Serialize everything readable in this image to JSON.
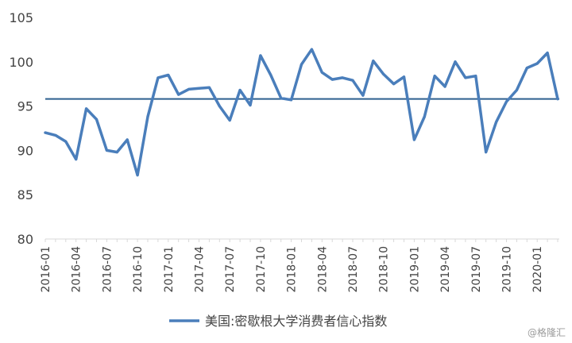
{
  "chart_data": {
    "type": "line",
    "title": "",
    "xlabel": "",
    "ylabel": "",
    "ylim": [
      80,
      105
    ],
    "yticks": [
      80,
      85,
      90,
      95,
      100,
      105
    ],
    "grid": false,
    "legend_position": "bottom",
    "x": [
      "2016-01",
      "2016-02",
      "2016-03",
      "2016-04",
      "2016-05",
      "2016-06",
      "2016-07",
      "2016-08",
      "2016-09",
      "2016-10",
      "2016-11",
      "2016-12",
      "2017-01",
      "2017-02",
      "2017-03",
      "2017-04",
      "2017-05",
      "2017-06",
      "2017-07",
      "2017-08",
      "2017-09",
      "2017-10",
      "2017-11",
      "2017-12",
      "2018-01",
      "2018-02",
      "2018-03",
      "2018-04",
      "2018-05",
      "2018-06",
      "2018-07",
      "2018-08",
      "2018-09",
      "2018-10",
      "2018-11",
      "2018-12",
      "2019-01",
      "2019-02",
      "2019-03",
      "2019-04",
      "2019-05",
      "2019-06",
      "2019-07",
      "2019-08",
      "2019-09",
      "2019-10",
      "2019-11",
      "2019-12",
      "2020-01",
      "2020-02",
      "2020-03"
    ],
    "xticklabels": [
      "2016-01",
      "2016-04",
      "2016-07",
      "2016-10",
      "2017-01",
      "2017-04",
      "2017-07",
      "2017-10",
      "2018-01",
      "2018-04",
      "2018-07",
      "2018-10",
      "2019-01",
      "2019-04",
      "2019-07",
      "2019-10",
      "2020-01"
    ],
    "series": [
      {
        "name": "美国:密歇根大学消费者信心指数",
        "color": "#4a7ebb",
        "values": [
          92.0,
          91.7,
          91.0,
          89.0,
          94.7,
          93.5,
          90.0,
          89.8,
          91.2,
          87.2,
          93.8,
          98.2,
          98.5,
          96.3,
          96.9,
          97.0,
          97.1,
          95.0,
          93.4,
          96.8,
          95.1,
          100.7,
          98.5,
          95.9,
          95.7,
          99.7,
          101.4,
          98.8,
          98.0,
          98.2,
          97.9,
          96.2,
          100.1,
          98.6,
          97.5,
          98.3,
          91.2,
          93.8,
          98.4,
          97.2,
          100.0,
          98.2,
          98.4,
          89.8,
          93.2,
          95.5,
          96.8,
          99.3,
          99.8,
          101.0,
          95.8
        ]
      }
    ],
    "reference_line": {
      "value": 95.8,
      "color": "#2e5f8f"
    }
  },
  "watermark": "@格隆汇"
}
